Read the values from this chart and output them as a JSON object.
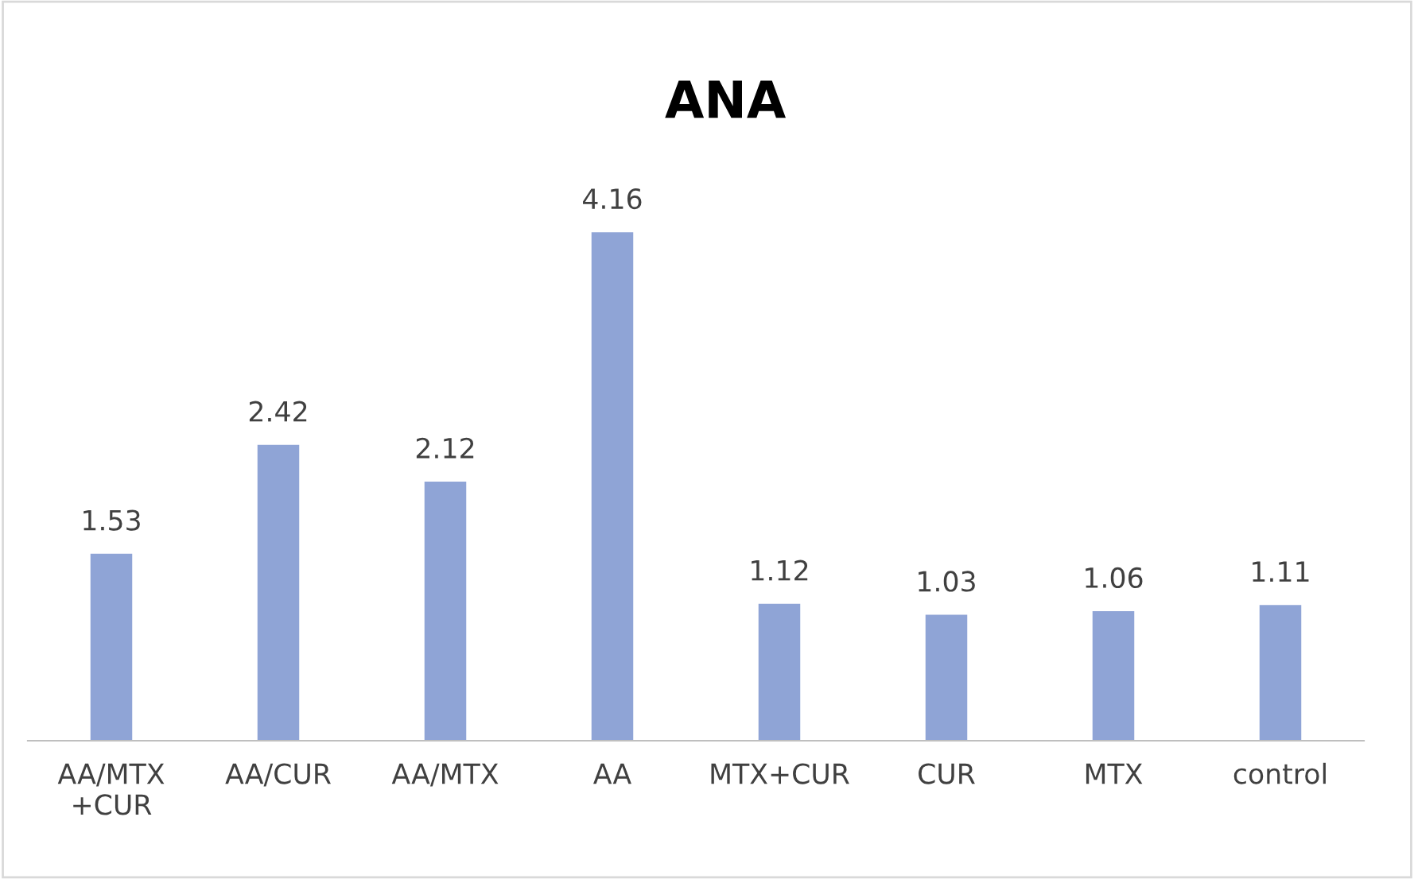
{
  "chart_data": {
    "type": "bar",
    "title": "ANA",
    "categories": [
      "AA/MTX\n+CUR",
      "AA/CUR",
      "AA/MTX",
      "AA",
      "MTX+CUR",
      "CUR",
      "MTX",
      "control"
    ],
    "values": [
      1.53,
      2.42,
      2.12,
      4.16,
      1.12,
      1.03,
      1.06,
      1.11
    ],
    "color": "#8fa4d6",
    "data_labels": true
  }
}
